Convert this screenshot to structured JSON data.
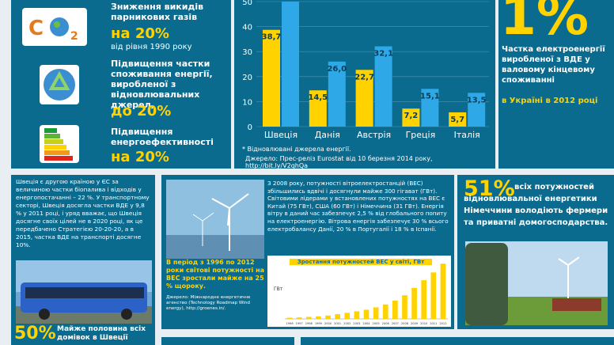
{
  "goals": [
    {
      "title": "Зниження викидів парникових газів",
      "value": "на 20%",
      "note": "від рівня 1990 року",
      "icon": "co2-icon"
    },
    {
      "title": "Підвищення частки споживання енергії, виробленої з відновлювальних джерел,",
      "value": "до 20%",
      "note": "",
      "icon": "recycle-icon"
    },
    {
      "title": "Підвищення енергоефективності",
      "value": "на 20%",
      "note": "",
      "icon": "energy-label-icon"
    }
  ],
  "chart_data": {
    "type": "bar",
    "categories": [
      "Швеція",
      "Данія",
      "Австрія",
      "Греція",
      "Італія"
    ],
    "series": [
      {
        "values": [
          38.7,
          14.5,
          22.7,
          7.2,
          5.7
        ],
        "color": "#ffd200"
      },
      {
        "values": [
          51.0,
          26.0,
          32.1,
          15.1,
          13.5
        ],
        "color": "#2ea8e6"
      }
    ],
    "ylim": [
      0,
      50
    ],
    "yticks": [
      "0",
      "10",
      "20",
      "30",
      "40",
      "50"
    ],
    "labels": [
      "38,7",
      "",
      "14,5",
      "26,0",
      "22,7",
      "32,1",
      "7,2",
      "15,1",
      "5,7",
      "13,5"
    ],
    "footnote": "* Відновлювані джерела енергії.",
    "source": "Джерело: Прес-реліз Eurostat від 10 березня 2014 року, http://bit.ly/V2qhQa"
  },
  "ukraine": {
    "big": "1%",
    "text": "Частка електроенергії виробленої з ВДЕ у валовому кінцевому споживанні",
    "highlight": "в Україні в 2012 році"
  },
  "sweden": {
    "text": "Швеція є другою країною у ЄС за величиною частки біопалива і відходів у енергопостачанні – 22 %. У транспортному секторі, Швеція досягла частки ВДЕ у 9,8 % у 2011 році, і уряд вважає, що Швеція досягне своїх цілей не в 2020 році, як це передбачено Стратегією 20-20-20, а в 2015, частка ВДЕ на транспорті досягне 10%.",
    "big": "50%",
    "caption": "Майже половина всіх домівок в Швеції"
  },
  "wind": {
    "text": "З 2008 року, потужності вітроелектростанцій (ВЕС) збільшились вдвічі і досягнули майже 300 гігават (ГВт). Світовими лідерами у встановлених потужностях на ВЕС є Китай (75 ГВт), США (60 ГВт) і Німеччина (31 ГВт). Енергія вітру в даний час забезпечує 2,5 % від глобального попиту на електроенергію. Вітрова енергія забезпечує 30 % всього електробалансу Данії, 20 % в Португалії і 18 % в Іспанії.",
    "growth": "В період з 1996 по 2012 роки світові потужності на ВЕС зростали майже на 25 % щороку.",
    "source": "Джерело: Міжнародне енергетичне агенство (Technology Roadmap Wind energy), http://groenes.in/.",
    "chart_title": "Зростання потужностей ВЕС у світі, ГВт",
    "ylabel": "ГВт",
    "years": [
      "1996",
      "1997",
      "1998",
      "1999",
      "2000",
      "2001",
      "2002",
      "2003",
      "2004",
      "2005",
      "2006",
      "2007",
      "2008",
      "2009",
      "2010",
      "2011",
      "2012"
    ],
    "values": [
      6,
      7.5,
      10,
      13,
      17,
      24,
      31,
      39,
      47,
      59,
      74,
      94,
      121,
      159,
      198,
      238,
      283
    ],
    "ylim": [
      0,
      300
    ]
  },
  "germany": {
    "big": "51%",
    "text": "всіх потужностей відновлювальної енергетики Німеччини володіють фермери та приватні домогосподарства."
  }
}
